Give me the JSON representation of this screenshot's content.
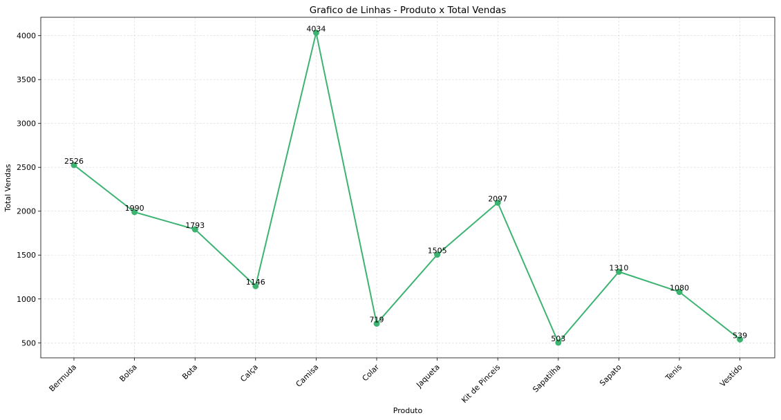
{
  "chart_data": {
    "type": "line",
    "title": "Grafico de Linhas - Produto x Total Vendas",
    "xlabel": "Produto",
    "ylabel": "Total Vendas",
    "categories": [
      "Bermuda",
      "Bolsa",
      "Bota",
      "Calça",
      "Camisa",
      "Colar",
      "Jaqueta",
      "Kit de Pinceis",
      "Sapatilha",
      "Sapato",
      "Tenis",
      "Vestido"
    ],
    "values": [
      2526,
      1990,
      1793,
      1146,
      4034,
      719,
      1505,
      2097,
      503,
      1310,
      1080,
      539
    ],
    "data_labels": [
      "2526",
      "1990",
      "1793",
      "1146",
      "4034",
      "719",
      "1505",
      "2097",
      "503",
      "1310",
      "1080",
      "539"
    ],
    "yticks": [
      500,
      1000,
      1500,
      2000,
      2500,
      3000,
      3500,
      4000
    ],
    "ylim": [
      329,
      4210
    ],
    "grid": true,
    "line_color": "#3cb371",
    "marker": "circle"
  }
}
